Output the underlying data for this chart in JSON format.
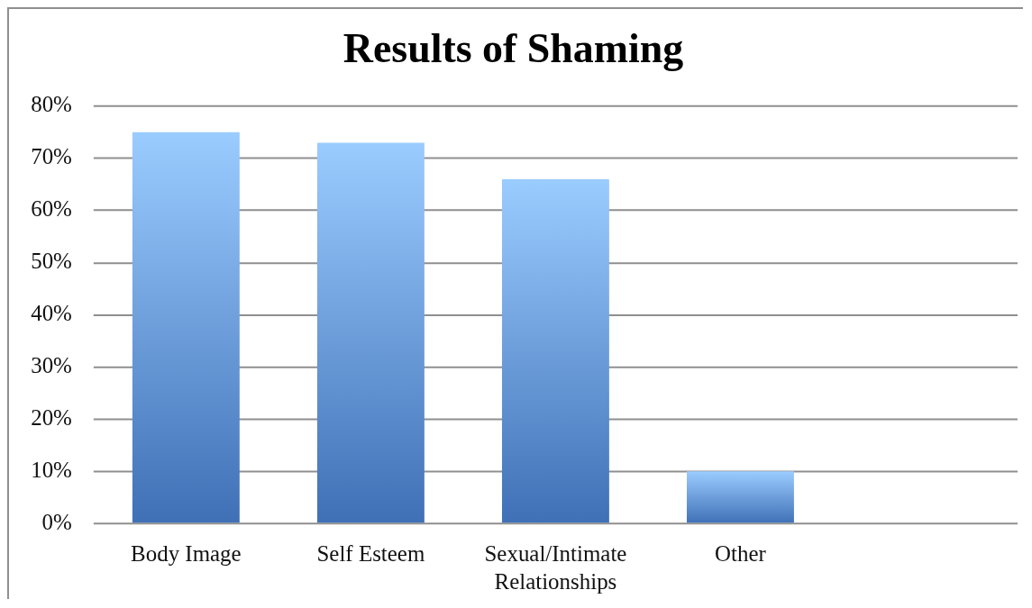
{
  "chart_data": {
    "type": "bar",
    "title": "Results of Shaming",
    "categories": [
      "Body Image",
      "Self Esteem",
      "Sexual/Intimate Relationships",
      "Other",
      null
    ],
    "values": [
      75,
      73,
      66,
      10,
      null
    ],
    "color": "#6d9ee4",
    "ylim": [
      0,
      80
    ],
    "yticks": [
      {
        "value": 0,
        "label": "0%"
      },
      {
        "value": 10,
        "label": "10%"
      },
      {
        "value": 20,
        "label": "20%"
      },
      {
        "value": 30,
        "label": "30%"
      },
      {
        "value": 40,
        "label": "40%"
      },
      {
        "value": 50,
        "label": "50%"
      },
      {
        "value": 60,
        "label": "60%"
      },
      {
        "value": 70,
        "label": "70%"
      },
      {
        "value": 80,
        "label": "80%"
      }
    ],
    "grid": "y"
  }
}
